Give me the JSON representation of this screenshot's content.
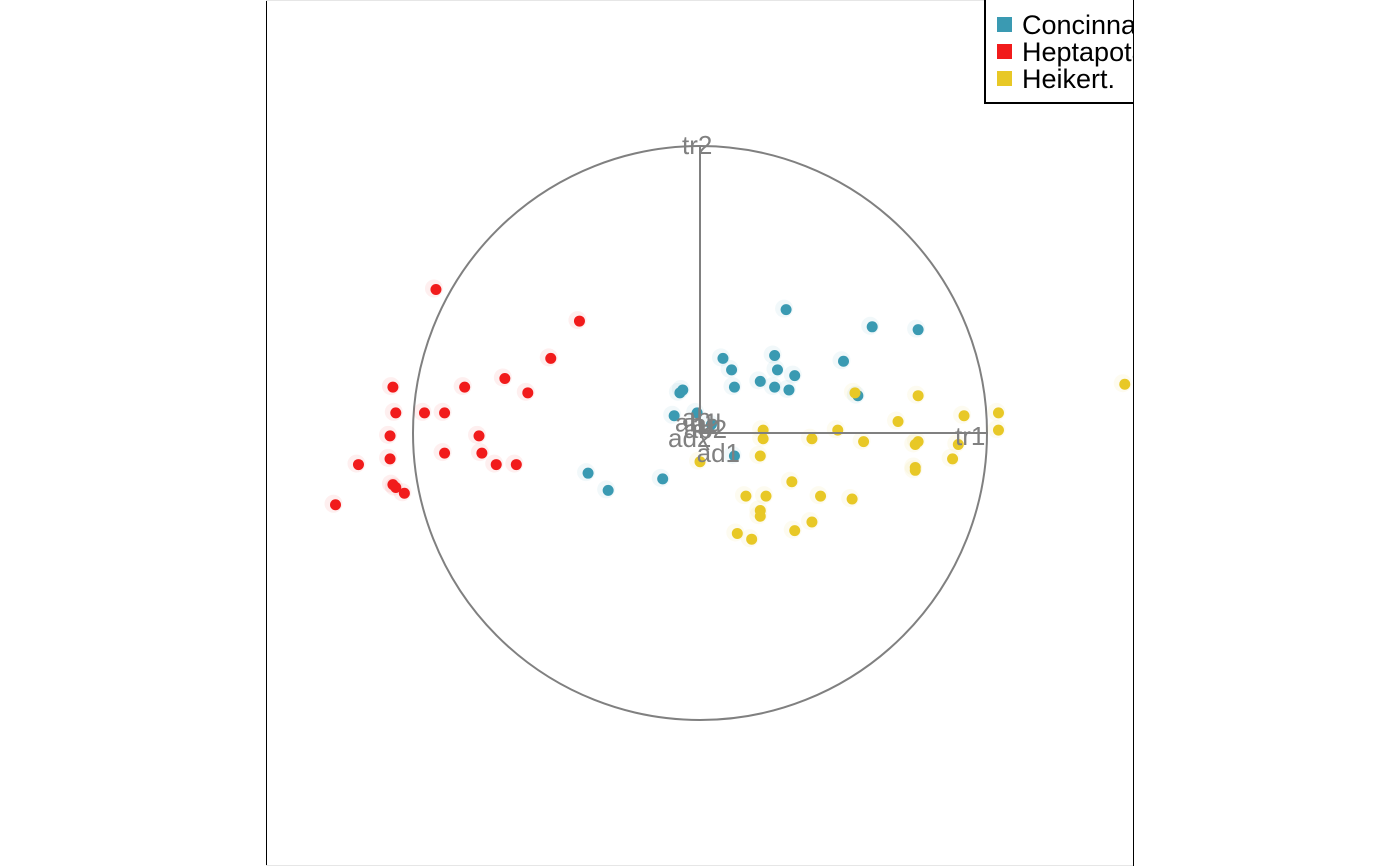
{
  "chart_data": {
    "type": "scatter",
    "title": "",
    "xlabel": "",
    "ylabel": "",
    "xlim": [
      -1.5,
      1.5
    ],
    "ylim": [
      -1.5,
      1.5
    ],
    "grid": false,
    "legend": {
      "position": "top-right"
    },
    "correlation_circle": {
      "radius": 1
    },
    "variables": [
      {
        "name": "tr1",
        "x": 1.0,
        "y": 0.0
      },
      {
        "name": "tr2",
        "x": 0.0,
        "y": 1.0
      },
      {
        "name": "ad1",
        "x": 0.03,
        "y": -0.06
      },
      {
        "name": "ad2",
        "x": 0.0,
        "y": 0.0
      },
      {
        "name": "ab1",
        "x": 0.01,
        "y": 0.02
      },
      {
        "name": "ab2",
        "x": 0.02,
        "y": 0.01
      },
      {
        "name": "ad",
        "x": 0.05,
        "y": 0.03
      },
      {
        "name": "ab",
        "x": 0.0,
        "y": 0.03
      }
    ],
    "series": [
      {
        "name": "Concinna",
        "color": "#3a9ab2",
        "points": [
          [
            0.3,
            0.43
          ],
          [
            0.08,
            0.26
          ],
          [
            0.11,
            0.22
          ],
          [
            0.26,
            0.16
          ],
          [
            0.27,
            0.22
          ],
          [
            0.26,
            0.27
          ],
          [
            0.33,
            0.2
          ],
          [
            0.31,
            0.15
          ],
          [
            0.5,
            0.25
          ],
          [
            0.6,
            0.37
          ],
          [
            0.76,
            0.36
          ],
          [
            0.55,
            0.13
          ],
          [
            0.21,
            0.18
          ],
          [
            0.12,
            0.16
          ],
          [
            -0.06,
            0.15
          ],
          [
            -0.07,
            0.14
          ],
          [
            -0.09,
            0.06
          ],
          [
            -0.01,
            0.07
          ],
          [
            0.04,
            0.03
          ],
          [
            0.12,
            -0.08
          ],
          [
            -0.39,
            -0.14
          ],
          [
            -0.32,
            -0.2
          ],
          [
            -0.13,
            -0.16
          ]
        ]
      },
      {
        "name": "Heptapotamica",
        "color": "#f11b1b",
        "points": [
          [
            -0.92,
            0.5
          ],
          [
            -0.42,
            0.39
          ],
          [
            -0.52,
            0.26
          ],
          [
            -0.68,
            0.19
          ],
          [
            -0.6,
            0.14
          ],
          [
            -0.82,
            0.16
          ],
          [
            -1.07,
            0.16
          ],
          [
            -1.06,
            0.07
          ],
          [
            -0.96,
            0.07
          ],
          [
            -0.89,
            0.07
          ],
          [
            -1.08,
            -0.01
          ],
          [
            -0.77,
            -0.01
          ],
          [
            -0.89,
            -0.07
          ],
          [
            -0.76,
            -0.07
          ],
          [
            -0.71,
            -0.11
          ],
          [
            -0.64,
            -0.11
          ],
          [
            -1.08,
            -0.09
          ],
          [
            -1.19,
            -0.11
          ],
          [
            -1.07,
            -0.18
          ],
          [
            -1.03,
            -0.21
          ],
          [
            -1.06,
            -0.19
          ],
          [
            -1.27,
            -0.25
          ]
        ]
      },
      {
        "name": "Heikert.",
        "color": "#e8c826",
        "points": [
          [
            1.48,
            0.17
          ],
          [
            0.54,
            0.14
          ],
          [
            0.76,
            0.13
          ],
          [
            0.92,
            0.06
          ],
          [
            0.69,
            0.04
          ],
          [
            1.04,
            0.07
          ],
          [
            1.04,
            0.01
          ],
          [
            0.48,
            0.01
          ],
          [
            0.22,
            0.01
          ],
          [
            0.22,
            -0.02
          ],
          [
            0.39,
            -0.02
          ],
          [
            0.57,
            -0.03
          ],
          [
            0.76,
            -0.03
          ],
          [
            0.75,
            -0.04
          ],
          [
            0.9,
            -0.04
          ],
          [
            0.88,
            -0.09
          ],
          [
            0.21,
            -0.08
          ],
          [
            0.0,
            -0.1
          ],
          [
            0.75,
            -0.12
          ],
          [
            0.75,
            -0.13
          ],
          [
            0.32,
            -0.17
          ],
          [
            0.16,
            -0.22
          ],
          [
            0.23,
            -0.22
          ],
          [
            0.42,
            -0.22
          ],
          [
            0.53,
            -0.23
          ],
          [
            0.21,
            -0.27
          ],
          [
            0.21,
            -0.29
          ],
          [
            0.39,
            -0.31
          ],
          [
            0.33,
            -0.34
          ],
          [
            0.13,
            -0.35
          ],
          [
            0.18,
            -0.37
          ]
        ]
      }
    ]
  }
}
